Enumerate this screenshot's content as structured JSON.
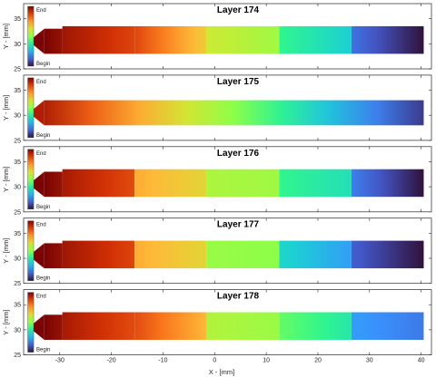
{
  "chart_data": {
    "type": "heatmap",
    "xlabel": "X - [mm]",
    "ylabel": "Y - [mm]",
    "xlim": [
      -37,
      42
    ],
    "ylim": [
      25,
      38
    ],
    "xticks": [
      -30,
      -20,
      -10,
      0,
      10,
      20,
      30,
      40
    ],
    "yticks": [
      25,
      30,
      35
    ],
    "colorbar": {
      "top_label": "End",
      "bottom_label": "Begin",
      "colormap": "turbo"
    },
    "grid": false,
    "panels": [
      {
        "title": "Layer 174",
        "tip_x": -36,
        "tip_y": 30.5,
        "segments": [
          {
            "x0": -33,
            "x1": -29.5,
            "ylow": 28,
            "yhigh": 33,
            "t0": 1.0,
            "t1": 0.97
          },
          {
            "x0": -29.5,
            "x1": -15.5,
            "ylow": 28,
            "yhigh": 33.5,
            "t0": 0.96,
            "t1": 0.87
          },
          {
            "x0": -15.5,
            "x1": -1.5,
            "ylow": 28,
            "yhigh": 33.5,
            "t0": 0.87,
            "t1": 0.66
          },
          {
            "x0": -1.5,
            "x1": 12.5,
            "ylow": 28,
            "yhigh": 33.5,
            "t0": 0.6,
            "t1": 0.53
          },
          {
            "x0": 12.5,
            "x1": 26.5,
            "ylow": 28,
            "yhigh": 33.5,
            "t0": 0.4,
            "t1": 0.3
          },
          {
            "x0": 26.5,
            "x1": 40.5,
            "ylow": 28,
            "yhigh": 33.5,
            "t0": 0.15,
            "t1": 0.0
          }
        ]
      },
      {
        "title": "Layer 175",
        "tip_x": -36,
        "tip_y": 30.5,
        "segments": [
          {
            "x0": -33,
            "x1": 40.5,
            "ylow": 28,
            "yhigh": 33,
            "t0": 0.94,
            "t1": 0.06
          }
        ]
      },
      {
        "title": "Layer 176",
        "tip_x": -36,
        "tip_y": 30.5,
        "segments": [
          {
            "x0": -33,
            "x1": -29.5,
            "ylow": 28,
            "yhigh": 33,
            "t0": 1.0,
            "t1": 0.97
          },
          {
            "x0": -29.5,
            "x1": -15.5,
            "ylow": 28,
            "yhigh": 33.5,
            "t0": 0.95,
            "t1": 0.86
          },
          {
            "x0": -15.5,
            "x1": -1.5,
            "ylow": 28,
            "yhigh": 33.5,
            "t0": 0.72,
            "t1": 0.64
          },
          {
            "x0": -1.5,
            "x1": 12.5,
            "ylow": 28,
            "yhigh": 33.5,
            "t0": 0.55,
            "t1": 0.53
          },
          {
            "x0": 12.5,
            "x1": 26.5,
            "ylow": 28,
            "yhigh": 33.5,
            "t0": 0.4,
            "t1": 0.34
          },
          {
            "x0": 26.5,
            "x1": 40.5,
            "ylow": 28,
            "yhigh": 33.5,
            "t0": 0.17,
            "t1": 0.0
          }
        ]
      },
      {
        "title": "Layer 177",
        "tip_x": -36,
        "tip_y": 30.5,
        "segments": [
          {
            "x0": -33,
            "x1": -29.5,
            "ylow": 28,
            "yhigh": 33,
            "t0": 1.0,
            "t1": 0.97
          },
          {
            "x0": -29.5,
            "x1": -15.5,
            "ylow": 28,
            "yhigh": 33.5,
            "t0": 0.96,
            "t1": 0.87
          },
          {
            "x0": -15.5,
            "x1": -1.5,
            "ylow": 28,
            "yhigh": 33.5,
            "t0": 0.72,
            "t1": 0.64
          },
          {
            "x0": -1.5,
            "x1": 12.5,
            "ylow": 28,
            "yhigh": 33.5,
            "t0": 0.52,
            "t1": 0.5
          },
          {
            "x0": 12.5,
            "x1": 26.5,
            "ylow": 28,
            "yhigh": 33.5,
            "t0": 0.32,
            "t1": 0.22
          },
          {
            "x0": 26.5,
            "x1": 40.5,
            "ylow": 28,
            "yhigh": 33.5,
            "t0": 0.12,
            "t1": 0.0
          }
        ]
      },
      {
        "title": "Layer 178",
        "tip_x": -36,
        "tip_y": 30.5,
        "segments": [
          {
            "x0": -33,
            "x1": -29.5,
            "ylow": 28,
            "yhigh": 33,
            "t0": 1.0,
            "t1": 0.97
          },
          {
            "x0": -29.5,
            "x1": -15.5,
            "ylow": 28,
            "yhigh": 33.5,
            "t0": 0.95,
            "t1": 0.86
          },
          {
            "x0": -15.5,
            "x1": -1.5,
            "ylow": 28,
            "yhigh": 33.5,
            "t0": 0.86,
            "t1": 0.7
          },
          {
            "x0": -1.5,
            "x1": 12.5,
            "ylow": 28,
            "yhigh": 33.5,
            "t0": 0.56,
            "t1": 0.52
          },
          {
            "x0": 12.5,
            "x1": 26.5,
            "ylow": 28,
            "yhigh": 33.5,
            "t0": 0.46,
            "t1": 0.36
          },
          {
            "x0": 26.5,
            "x1": 40.5,
            "ylow": 28,
            "yhigh": 33.5,
            "t0": 0.22,
            "t1": 0.16
          }
        ]
      }
    ]
  }
}
